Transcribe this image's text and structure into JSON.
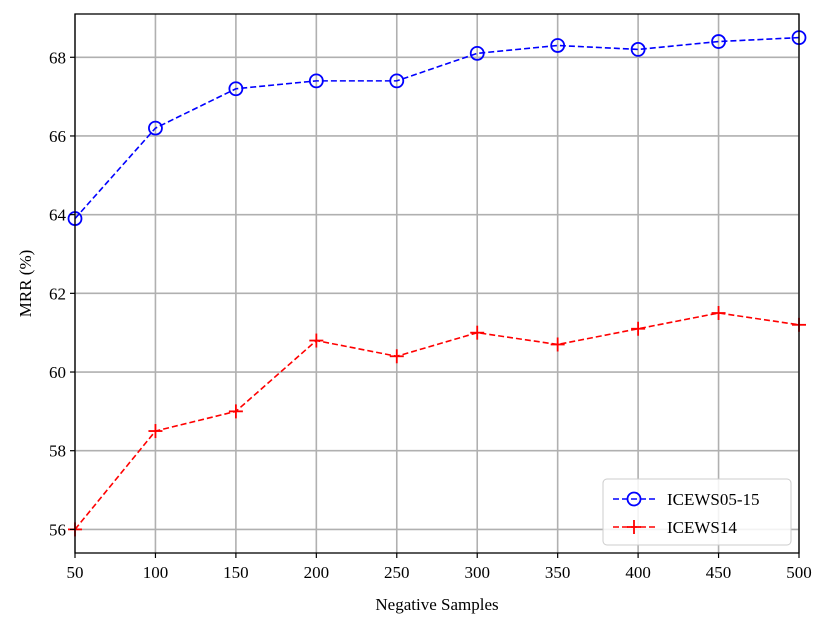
{
  "chart_data": {
    "type": "line",
    "xlabel": "Negative Samples",
    "ylabel": "MRR (%)",
    "xlim": [
      50,
      500
    ],
    "ylim": [
      55.4,
      69.1
    ],
    "xticks": [
      50,
      100,
      150,
      200,
      250,
      300,
      350,
      400,
      450,
      500
    ],
    "yticks": [
      56,
      58,
      60,
      62,
      64,
      66,
      68
    ],
    "grid": true,
    "legend_position": "lower-right",
    "x": [
      50,
      100,
      150,
      200,
      250,
      300,
      350,
      400,
      450,
      500
    ],
    "series": [
      {
        "name": "ICEWS05-15",
        "color": "#0000ff",
        "marker": "circle",
        "line_style": "dashed",
        "values": [
          63.9,
          66.2,
          67.2,
          67.4,
          67.4,
          68.1,
          68.3,
          68.2,
          68.4,
          68.5
        ]
      },
      {
        "name": "ICEWS14",
        "color": "#ff0000",
        "marker": "plus",
        "line_style": "dashed",
        "values": [
          56.0,
          58.5,
          59.0,
          60.8,
          60.4,
          61.0,
          60.7,
          61.1,
          61.5,
          61.2
        ]
      }
    ]
  }
}
